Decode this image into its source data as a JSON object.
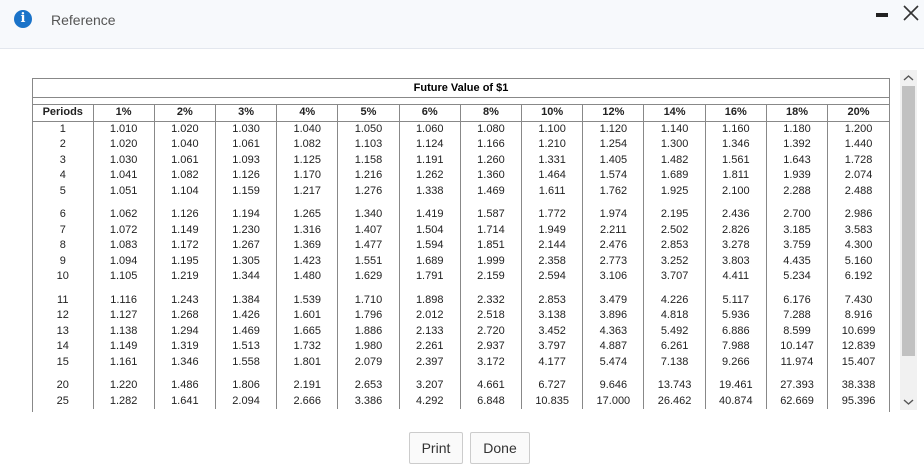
{
  "header": {
    "title": "Reference"
  },
  "table": {
    "title": "Future Value of $1",
    "columns": [
      "Periods",
      "1%",
      "2%",
      "3%",
      "4%",
      "5%",
      "6%",
      "8%",
      "10%",
      "12%",
      "14%",
      "16%",
      "18%",
      "20%"
    ],
    "rows": [
      [
        "1",
        "1.010",
        "1.020",
        "1.030",
        "1.040",
        "1.050",
        "1.060",
        "1.080",
        "1.100",
        "1.120",
        "1.140",
        "1.160",
        "1.180",
        "1.200"
      ],
      [
        "2",
        "1.020",
        "1.040",
        "1.061",
        "1.082",
        "1.103",
        "1.124",
        "1.166",
        "1.210",
        "1.254",
        "1.300",
        "1.346",
        "1.392",
        "1.440"
      ],
      [
        "3",
        "1.030",
        "1.061",
        "1.093",
        "1.125",
        "1.158",
        "1.191",
        "1.260",
        "1.331",
        "1.405",
        "1.482",
        "1.561",
        "1.643",
        "1.728"
      ],
      [
        "4",
        "1.041",
        "1.082",
        "1.126",
        "1.170",
        "1.216",
        "1.262",
        "1.360",
        "1.464",
        "1.574",
        "1.689",
        "1.811",
        "1.939",
        "2.074"
      ],
      [
        "5",
        "1.051",
        "1.104",
        "1.159",
        "1.217",
        "1.276",
        "1.338",
        "1.469",
        "1.611",
        "1.762",
        "1.925",
        "2.100",
        "2.288",
        "2.488"
      ],
      [
        "6",
        "1.062",
        "1.126",
        "1.194",
        "1.265",
        "1.340",
        "1.419",
        "1.587",
        "1.772",
        "1.974",
        "2.195",
        "2.436",
        "2.700",
        "2.986"
      ],
      [
        "7",
        "1.072",
        "1.149",
        "1.230",
        "1.316",
        "1.407",
        "1.504",
        "1.714",
        "1.949",
        "2.211",
        "2.502",
        "2.826",
        "3.185",
        "3.583"
      ],
      [
        "8",
        "1.083",
        "1.172",
        "1.267",
        "1.369",
        "1.477",
        "1.594",
        "1.851",
        "2.144",
        "2.476",
        "2.853",
        "3.278",
        "3.759",
        "4.300"
      ],
      [
        "9",
        "1.094",
        "1.195",
        "1.305",
        "1.423",
        "1.551",
        "1.689",
        "1.999",
        "2.358",
        "2.773",
        "3.252",
        "3.803",
        "4.435",
        "5.160"
      ],
      [
        "10",
        "1.105",
        "1.219",
        "1.344",
        "1.480",
        "1.629",
        "1.791",
        "2.159",
        "2.594",
        "3.106",
        "3.707",
        "4.411",
        "5.234",
        "6.192"
      ],
      [
        "11",
        "1.116",
        "1.243",
        "1.384",
        "1.539",
        "1.710",
        "1.898",
        "2.332",
        "2.853",
        "3.479",
        "4.226",
        "5.117",
        "6.176",
        "7.430"
      ],
      [
        "12",
        "1.127",
        "1.268",
        "1.426",
        "1.601",
        "1.796",
        "2.012",
        "2.518",
        "3.138",
        "3.896",
        "4.818",
        "5.936",
        "7.288",
        "8.916"
      ],
      [
        "13",
        "1.138",
        "1.294",
        "1.469",
        "1.665",
        "1.886",
        "2.133",
        "2.720",
        "3.452",
        "4.363",
        "5.492",
        "6.886",
        "8.599",
        "10.699"
      ],
      [
        "14",
        "1.149",
        "1.319",
        "1.513",
        "1.732",
        "1.980",
        "2.261",
        "2.937",
        "3.797",
        "4.887",
        "6.261",
        "7.988",
        "10.147",
        "12.839"
      ],
      [
        "15",
        "1.161",
        "1.346",
        "1.558",
        "1.801",
        "2.079",
        "2.397",
        "3.172",
        "4.177",
        "5.474",
        "7.138",
        "9.266",
        "11.974",
        "15.407"
      ],
      [
        "20",
        "1.220",
        "1.486",
        "1.806",
        "2.191",
        "2.653",
        "3.207",
        "4.661",
        "6.727",
        "9.646",
        "13.743",
        "19.461",
        "27.393",
        "38.338"
      ],
      [
        "25",
        "1.282",
        "1.641",
        "2.094",
        "2.666",
        "3.386",
        "4.292",
        "6.848",
        "10.835",
        "17.000",
        "26.462",
        "40.874",
        "62.669",
        "95.396"
      ]
    ]
  },
  "buttons": [
    "Print",
    "Done"
  ]
}
